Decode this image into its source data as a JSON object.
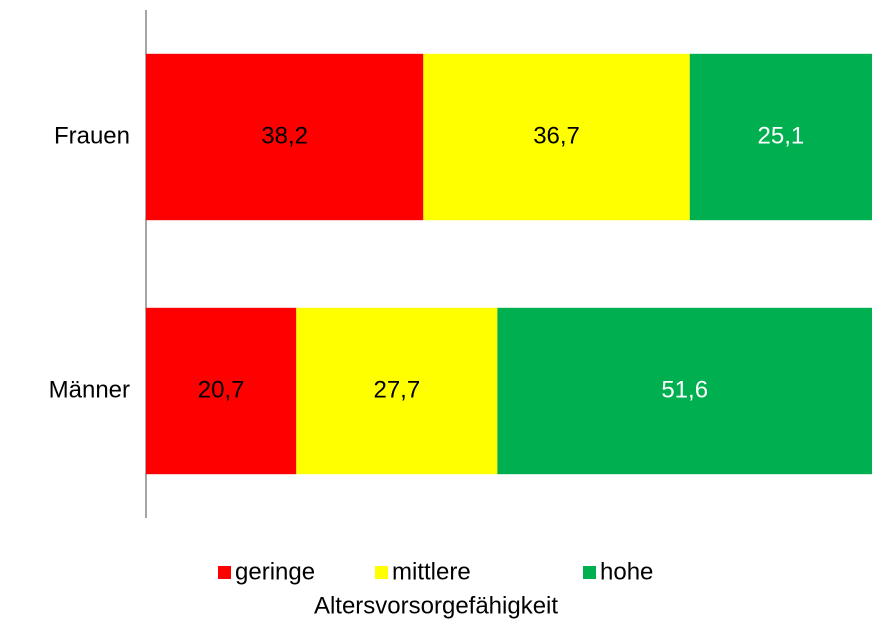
{
  "chart_data": {
    "type": "bar",
    "orientation": "horizontal",
    "stacked": true,
    "categories": [
      "Frauen",
      "Männer"
    ],
    "series": [
      {
        "name": "geringe",
        "color": "#ff0000",
        "label_color": "#000000",
        "values": [
          38.2,
          20.7
        ],
        "value_labels": [
          "38,2",
          "20,7"
        ]
      },
      {
        "name": "mittlere",
        "color": "#ffff00",
        "label_color": "#000000",
        "values": [
          36.7,
          27.7
        ],
        "value_labels": [
          "36,7",
          "27,7"
        ]
      },
      {
        "name": "hohe",
        "color": "#00b050",
        "label_color": "#ffffff",
        "values": [
          25.1,
          51.6
        ],
        "value_labels": [
          "25,1",
          "51,6"
        ]
      }
    ],
    "xlim": [
      0,
      100
    ],
    "legend_title": "Altersvorsorgefähigkeit",
    "legend": "bottom"
  }
}
